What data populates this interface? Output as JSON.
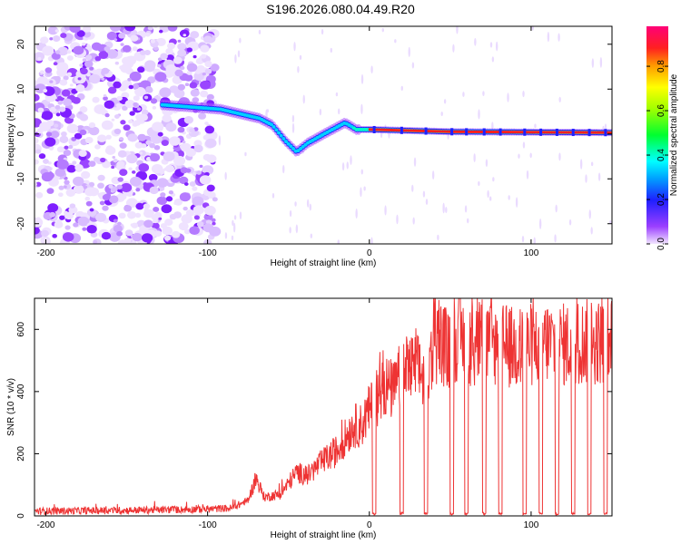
{
  "title": "S196.2026.080.04.49.R20",
  "chart_data": [
    {
      "type": "heatmap",
      "xlabel": "Height of straight line (km)",
      "ylabel": "Frequency (Hz)",
      "xlim": [
        -207,
        150
      ],
      "ylim": [
        -24.5,
        24
      ],
      "xticks": [
        -200,
        -100,
        0,
        100
      ],
      "yticks": [
        -20,
        -10,
        0,
        10,
        20
      ],
      "colorbar": {
        "label": "Normalized spectral amplitude",
        "range": [
          0,
          0.98
        ],
        "ticks": [
          0.0,
          0.2,
          0.4,
          0.6,
          0.8
        ]
      },
      "ridge": [
        {
          "x": -128,
          "f": 6.5
        },
        {
          "x": -92,
          "f": 5.5
        },
        {
          "x": -80,
          "f": 4.5
        },
        {
          "x": -68,
          "f": 3.5
        },
        {
          "x": -60,
          "f": 2.0
        },
        {
          "x": -52,
          "f": -1.5
        },
        {
          "x": -45,
          "f": -4.0
        },
        {
          "x": -38,
          "f": -2.0
        },
        {
          "x": -28,
          "f": 0.0
        },
        {
          "x": -15,
          "f": 2.5
        },
        {
          "x": -8,
          "f": 1.0
        },
        {
          "x": 0,
          "f": 1.0
        },
        {
          "x": 50,
          "f": 0.5
        },
        {
          "x": 150,
          "f": 0.3
        }
      ]
    },
    {
      "type": "line",
      "xlabel": "Height of straight line (km)",
      "ylabel": "SNR (10 * v/v)",
      "xlim": [
        -207,
        150
      ],
      "ylim": [
        0,
        700
      ],
      "xticks": [
        -200,
        -100,
        0,
        100
      ],
      "yticks": [
        0,
        200,
        400,
        600
      ],
      "series": [
        {
          "color": "#ee3333",
          "points": [
            [
              -207,
              15
            ],
            [
              -150,
              18
            ],
            [
              -120,
              20
            ],
            [
              -100,
              22
            ],
            [
              -85,
              25
            ],
            [
              -75,
              50
            ],
            [
              -70,
              120
            ],
            [
              -65,
              60
            ],
            [
              -55,
              70
            ],
            [
              -45,
              140
            ],
            [
              -38,
              130
            ],
            [
              -30,
              170
            ],
            [
              -20,
              210
            ],
            [
              -10,
              290
            ],
            [
              -5,
              290
            ],
            [
              0,
              340
            ],
            [
              5,
              380
            ],
            [
              10,
              420
            ],
            [
              15,
              400
            ],
            [
              20,
              460
            ],
            [
              25,
              470
            ],
            [
              30,
              470
            ],
            [
              35,
              440
            ],
            [
              40,
              560
            ],
            [
              45,
              560
            ],
            [
              50,
              520
            ],
            [
              55,
              590
            ],
            [
              60,
              550
            ],
            [
              70,
              560
            ],
            [
              80,
              550
            ],
            [
              90,
              540
            ],
            [
              100,
              550
            ],
            [
              110,
              560
            ],
            [
              120,
              550
            ],
            [
              130,
              560
            ],
            [
              140,
              560
            ],
            [
              150,
              560
            ]
          ],
          "dropouts": [
            3,
            20,
            35,
            51,
            60,
            71,
            81,
            96,
            106,
            116,
            126,
            136,
            146
          ]
        }
      ]
    }
  ]
}
